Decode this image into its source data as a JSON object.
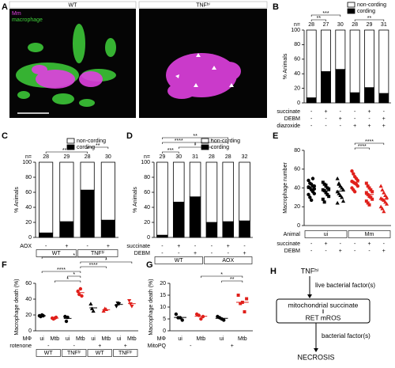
{
  "image_panel": {
    "panel_label": "A",
    "left": {
      "title": "WT",
      "channels": [
        "Mm",
        "macrophage"
      ]
    },
    "right": {
      "title": "TNFʰⁱ"
    }
  },
  "chart_data": [
    {
      "type": "stacked_bar",
      "panel_label": "B",
      "y_label": "% Animals",
      "ylim": [
        0,
        100
      ],
      "yticks": [
        0,
        20,
        40,
        60,
        80,
        100
      ],
      "n_label": "n=",
      "n_values": [
        28,
        27,
        30,
        28,
        29,
        31
      ],
      "series": [
        {
          "name": "non-cording",
          "color": "#ffffff",
          "values": [
            93,
            57,
            54,
            86,
            79,
            87
          ]
        },
        {
          "name": "cording",
          "color": "#000000",
          "values": [
            7,
            43,
            46,
            14,
            21,
            13
          ]
        }
      ],
      "rows": [
        {
          "label": "succinate",
          "values": [
            "-",
            "+",
            "-",
            "-",
            "+",
            "-"
          ]
        },
        {
          "label": "DEBM",
          "values": [
            "-",
            "-",
            "+",
            "-",
            "-",
            "+"
          ]
        },
        {
          "label": "diazoxide",
          "values": [
            "-",
            "-",
            "-",
            "+",
            "+",
            "+"
          ]
        }
      ],
      "significance": [
        "**",
        "***",
        "**"
      ]
    },
    {
      "type": "stacked_bar",
      "panel_label": "C",
      "y_label": "% Animals",
      "ylim": [
        0,
        100
      ],
      "yticks": [
        0,
        20,
        40,
        60,
        80,
        100
      ],
      "n_label": "n=",
      "n_values": [
        28,
        29,
        28,
        30
      ],
      "series": [
        {
          "name": "non-cording",
          "color": "#ffffff",
          "values": [
            94,
            79,
            37,
            77
          ]
        },
        {
          "name": "cording",
          "color": "#000000",
          "values": [
            6,
            21,
            63,
            23
          ]
        }
      ],
      "rows": [
        {
          "label": "AOX",
          "values": [
            "-",
            "+",
            "-",
            "+"
          ]
        },
        {
          "values": [
            "WT",
            "TNFʰⁱ"
          ],
          "boxed": true
        }
      ],
      "significance": [
        "****",
        "**"
      ]
    },
    {
      "type": "stacked_bar",
      "panel_label": "D",
      "y_label": "% Animals",
      "ylim": [
        0,
        100
      ],
      "yticks": [
        0,
        20,
        40,
        60,
        80,
        100
      ],
      "n_label": "n=",
      "n_values": [
        29,
        30,
        31,
        28,
        28,
        32
      ],
      "series": [
        {
          "name": "non-cording",
          "color": "#ffffff",
          "values": [
            97,
            53,
            46,
            80,
            79,
            78
          ]
        },
        {
          "name": "cording",
          "color": "#000000",
          "values": [
            3,
            47,
            54,
            20,
            21,
            22
          ]
        }
      ],
      "rows": [
        {
          "label": "succinate",
          "values": [
            "-",
            "+",
            "-",
            "-",
            "+",
            "-"
          ]
        },
        {
          "label": "DEBM",
          "values": [
            "-",
            "-",
            "+",
            "-",
            "-",
            "+"
          ]
        },
        {
          "values": [
            "WT",
            "AOX"
          ],
          "boxed": true
        }
      ],
      "significance": [
        "***",
        "*",
        "****",
        "*",
        "**"
      ]
    },
    {
      "type": "dot",
      "panel_label": "E",
      "y_label": "Macrophage number",
      "ylim": [
        0,
        80
      ],
      "yticks": [
        0,
        20,
        40,
        60,
        80
      ],
      "series": [
        {
          "color": "#000000",
          "marker": "circle",
          "values": [
            48,
            45,
            44,
            42,
            42,
            41,
            40,
            38,
            36,
            34,
            33,
            30,
            27,
            50,
            39
          ]
        },
        {
          "color": "#000000",
          "marker": "square",
          "values": [
            46,
            44,
            42,
            40,
            39,
            38,
            37,
            35,
            33,
            31,
            28,
            25,
            43
          ]
        },
        {
          "color": "#000000",
          "marker": "triangle",
          "values": [
            50,
            45,
            42,
            40,
            38,
            36,
            34,
            32,
            30,
            26,
            24,
            44
          ]
        },
        {
          "color": "#e0201b",
          "marker": "circle",
          "values": [
            58,
            55,
            52,
            50,
            48,
            47,
            46,
            45,
            44,
            42,
            40,
            38,
            36
          ]
        },
        {
          "color": "#e0201b",
          "marker": "square",
          "values": [
            45,
            42,
            40,
            38,
            36,
            35,
            33,
            31,
            30,
            28,
            26,
            24,
            22
          ]
        },
        {
          "color": "#e0201b",
          "marker": "triangle",
          "values": [
            42,
            38,
            35,
            32,
            30,
            29,
            28,
            27,
            25,
            23,
            20,
            18,
            15
          ]
        }
      ],
      "rows": [
        {
          "label": "Animal",
          "values": [
            "ui",
            "Mm"
          ],
          "boxed": true
        },
        {
          "label": "succinate",
          "values": [
            "-",
            "+",
            "-",
            "-",
            "+",
            "-"
          ]
        },
        {
          "label": "DEBM",
          "values": [
            "-",
            "-",
            "+",
            "-",
            "-",
            "+"
          ]
        }
      ],
      "significance": [
        "****",
        "****"
      ]
    },
    {
      "type": "dot",
      "panel_label": "F",
      "y_label": "Macrophage death (%)",
      "ylim": [
        0,
        60
      ],
      "yticks": [
        0,
        20,
        40,
        60
      ],
      "series": [
        {
          "color": "#000000",
          "marker": "circle",
          "values": [
            19,
            18,
            20,
            19
          ]
        },
        {
          "color": "#e0201b",
          "marker": "circle",
          "values": [
            16,
            15,
            16,
            17
          ]
        },
        {
          "color": "#000000",
          "marker": "circle",
          "values": [
            18,
            12,
            17
          ]
        },
        {
          "color": "#e0201b",
          "marker": "circle",
          "values": [
            50,
            46,
            53,
            44
          ]
        },
        {
          "color": "#000000",
          "marker": "triangle",
          "values": [
            34,
            28,
            25
          ]
        },
        {
          "color": "#e0201b",
          "marker": "triangle",
          "values": [
            25,
            28,
            27
          ]
        },
        {
          "color": "#000000",
          "marker": "triangle-down",
          "values": [
            31,
            35,
            34
          ]
        },
        {
          "color": "#e0201b",
          "marker": "triangle-down",
          "values": [
            38,
            34,
            31
          ]
        }
      ],
      "rows": [
        {
          "label": "MΦ",
          "values": [
            "ui",
            "Mtb",
            "ui",
            "Mtb",
            "ui",
            "Mtb",
            "ui",
            "Mtb"
          ]
        },
        {
          "label": "rotenone",
          "values": [
            "-",
            "-",
            "+",
            "+"
          ]
        },
        {
          "values": [
            "WT",
            "TNFʰⁱ",
            "WT",
            "TNFʰⁱ"
          ],
          "boxed": true
        }
      ],
      "significance": [
        "*",
        "*",
        "****",
        "****",
        "*",
        "*"
      ]
    },
    {
      "type": "dot",
      "panel_label": "G",
      "y_label": "Macrophage death (%)",
      "ylim": [
        0,
        20
      ],
      "yticks": [
        0,
        5,
        10,
        15,
        20
      ],
      "series": [
        {
          "color": "#000000",
          "marker": "circle",
          "values": [
            7,
            5.5,
            5.5,
            4.5
          ]
        },
        {
          "color": "#e0201b",
          "marker": "circle",
          "values": [
            7,
            6.5,
            5,
            6
          ]
        },
        {
          "color": "#000000",
          "marker": "circle",
          "values": [
            6,
            5.5,
            5,
            4.5
          ]
        },
        {
          "color": "#e0201b",
          "marker": "square",
          "values": [
            15,
            11.5,
            12,
            8,
            13.5
          ]
        }
      ],
      "rows": [
        {
          "label": "MΦ",
          "values": [
            "ui",
            "Mtb",
            "ui",
            "Mtb"
          ]
        },
        {
          "label": "MitoPQ",
          "values": [
            "-",
            "+"
          ]
        }
      ],
      "significance": [
        "*",
        "**"
      ]
    }
  ],
  "diagram": {
    "panel_label": "H",
    "nodes": [
      "TNFʰⁱ",
      "mitochondrial succinate",
      "RET mROS",
      "NECROSIS"
    ],
    "edge_labels": [
      "live bacterial factor(s)",
      "bacterial factor(s)"
    ]
  }
}
